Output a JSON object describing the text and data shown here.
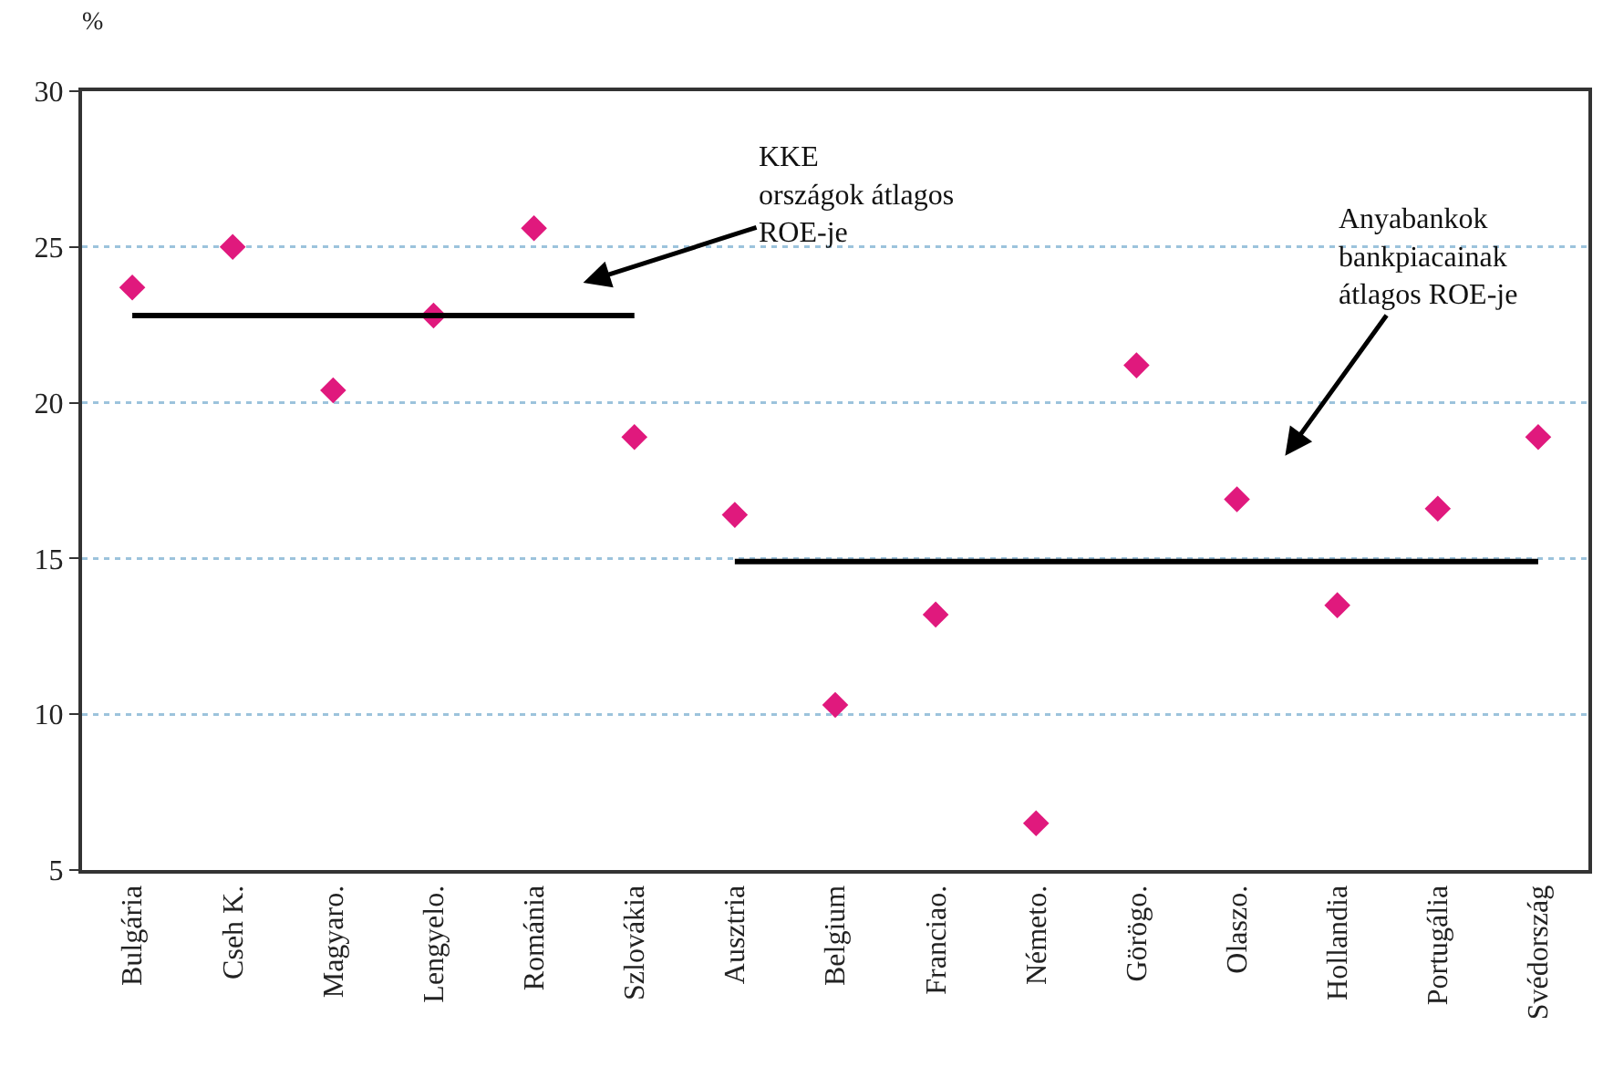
{
  "chart_data": {
    "type": "scatter",
    "ylabel": "%",
    "categories": [
      "Bulgária",
      "Cseh K.",
      "Magyaro.",
      "Lengyelo.",
      "Románia",
      "Szlovákia",
      "Ausztria",
      "Belgium",
      "Franciao.",
      "Németo.",
      "Görögo.",
      "Olaszo.",
      "Hollandia",
      "Portugália",
      "Svédország"
    ],
    "series": [
      {
        "color": "#e0197d",
        "marker": "diamond",
        "values": [
          23.7,
          25.0,
          20.4,
          22.8,
          25.6,
          18.9,
          16.4,
          10.3,
          13.2,
          6.5,
          21.2,
          16.9,
          13.5,
          16.6,
          18.9
        ]
      },
      {
        "type": "line",
        "color": "#000000",
        "marker": "none",
        "line_style": "solid",
        "values": [
          22.8,
          22.8,
          22.8,
          22.8,
          22.8,
          22.8,
          null,
          null,
          null,
          null,
          null,
          null,
          null,
          null,
          null
        ]
      },
      {
        "type": "line",
        "color": "#000000",
        "marker": "none",
        "line_style": "solid",
        "values": [
          null,
          null,
          null,
          null,
          null,
          null,
          14.9,
          14.9,
          14.9,
          14.9,
          14.9,
          14.9,
          14.9,
          14.9,
          14.9
        ]
      }
    ],
    "annotations": [
      "KKE\nországok átlagos\nROE-je",
      "Anyabankok\nbankpiacainak\nátlagos ROE-je"
    ],
    "ylim": [
      5,
      30
    ],
    "yticks": [
      5,
      10,
      15,
      20,
      25,
      30
    ],
    "grid": "y"
  }
}
